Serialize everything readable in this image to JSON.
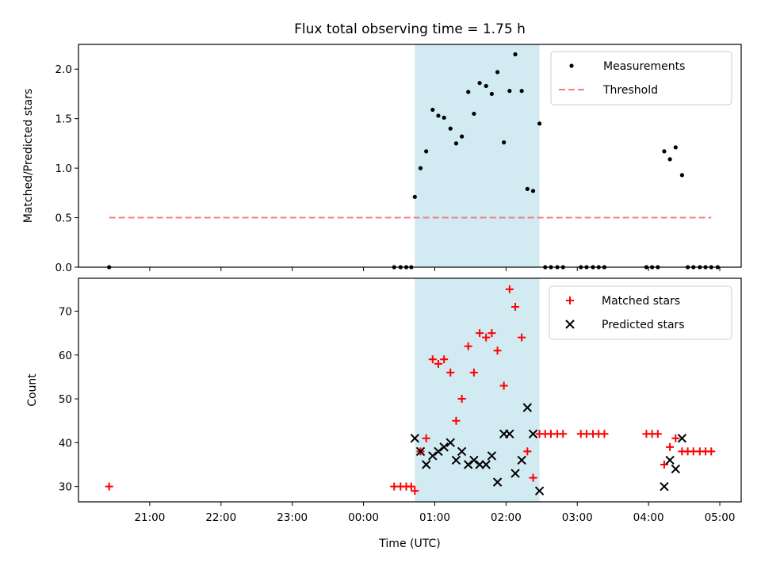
{
  "chart_data": {
    "title": "Flux total observing time = 1.75 h",
    "xlabel": "Time (UTC)",
    "x_unit": "hours UTC (values past 24 = after midnight)",
    "xlim": [
      20.0,
      29.3
    ],
    "x_ticks": [
      {
        "value": 21,
        "label": "21:00"
      },
      {
        "value": 22,
        "label": "22:00"
      },
      {
        "value": 23,
        "label": "23:00"
      },
      {
        "value": 24,
        "label": "00:00"
      },
      {
        "value": 25,
        "label": "01:00"
      },
      {
        "value": 26,
        "label": "02:00"
      },
      {
        "value": 27,
        "label": "03:00"
      },
      {
        "value": 28,
        "label": "04:00"
      },
      {
        "value": 29,
        "label": "05:00"
      }
    ],
    "highlight_band": {
      "x": [
        24.72,
        26.47
      ],
      "color": "#add8e6"
    },
    "panels": [
      {
        "type": "scatter",
        "ylabel": "Matched/Predicted stars",
        "ylim": [
          0,
          2.25
        ],
        "y_ticks": [
          "0.0",
          "0.5",
          "1.0",
          "1.5",
          "2.0"
        ],
        "legend_position": "top-right",
        "series": [
          {
            "name": "Measurements",
            "marker": "dot",
            "color": "#000000",
            "points": [
              [
                20.43,
                0
              ],
              [
                24.43,
                0
              ],
              [
                24.52,
                0
              ],
              [
                24.6,
                0
              ],
              [
                24.67,
                0
              ],
              [
                24.72,
                0.71
              ],
              [
                24.8,
                1.0
              ],
              [
                24.88,
                1.17
              ],
              [
                24.97,
                1.59
              ],
              [
                25.05,
                1.53
              ],
              [
                25.13,
                1.51
              ],
              [
                25.22,
                1.4
              ],
              [
                25.3,
                1.25
              ],
              [
                25.38,
                1.32
              ],
              [
                25.47,
                1.77
              ],
              [
                25.55,
                1.55
              ],
              [
                25.63,
                1.86
              ],
              [
                25.72,
                1.83
              ],
              [
                25.8,
                1.75
              ],
              [
                25.88,
                1.97
              ],
              [
                25.97,
                1.26
              ],
              [
                26.05,
                1.78
              ],
              [
                26.13,
                2.15
              ],
              [
                26.22,
                1.78
              ],
              [
                26.3,
                0.79
              ],
              [
                26.38,
                0.77
              ],
              [
                26.47,
                1.45
              ],
              [
                26.55,
                0
              ],
              [
                26.63,
                0
              ],
              [
                26.72,
                0
              ],
              [
                26.8,
                0
              ],
              [
                27.05,
                0
              ],
              [
                27.13,
                0
              ],
              [
                27.22,
                0
              ],
              [
                27.3,
                0
              ],
              [
                27.38,
                0
              ],
              [
                27.97,
                0
              ],
              [
                28.05,
                0
              ],
              [
                28.13,
                0
              ],
              [
                28.22,
                1.17
              ],
              [
                28.3,
                1.09
              ],
              [
                28.38,
                1.21
              ],
              [
                28.47,
                0.93
              ],
              [
                28.55,
                0
              ],
              [
                28.63,
                0
              ],
              [
                28.72,
                0
              ],
              [
                28.8,
                0
              ],
              [
                28.88,
                0
              ],
              [
                28.97,
                0
              ]
            ]
          },
          {
            "name": "Threshold",
            "marker": "dashed-line",
            "color": "#f08080",
            "points": [
              [
                20.43,
                0.5
              ],
              [
                28.88,
                0.5
              ]
            ]
          }
        ]
      },
      {
        "type": "scatter",
        "ylabel": "Count",
        "ylim": [
          26.5,
          77.5
        ],
        "y_ticks": [
          "30",
          "40",
          "50",
          "60",
          "70"
        ],
        "legend_position": "top-right",
        "series": [
          {
            "name": "Matched stars",
            "marker": "plus",
            "color": "#ff0000",
            "points": [
              [
                20.43,
                30
              ],
              [
                24.43,
                30
              ],
              [
                24.52,
                30
              ],
              [
                24.6,
                30
              ],
              [
                24.67,
                30
              ],
              [
                24.72,
                29
              ],
              [
                24.8,
                38
              ],
              [
                24.88,
                41
              ],
              [
                24.97,
                59
              ],
              [
                25.05,
                58
              ],
              [
                25.13,
                59
              ],
              [
                25.22,
                56
              ],
              [
                25.3,
                45
              ],
              [
                25.38,
                50
              ],
              [
                25.47,
                62
              ],
              [
                25.55,
                56
              ],
              [
                25.63,
                65
              ],
              [
                25.72,
                64
              ],
              [
                25.8,
                65
              ],
              [
                25.88,
                61
              ],
              [
                25.97,
                53
              ],
              [
                26.05,
                75
              ],
              [
                26.13,
                71
              ],
              [
                26.22,
                64
              ],
              [
                26.3,
                38
              ],
              [
                26.38,
                32
              ],
              [
                26.47,
                42
              ],
              [
                26.55,
                42
              ],
              [
                26.63,
                42
              ],
              [
                26.72,
                42
              ],
              [
                26.8,
                42
              ],
              [
                27.05,
                42
              ],
              [
                27.13,
                42
              ],
              [
                27.22,
                42
              ],
              [
                27.3,
                42
              ],
              [
                27.38,
                42
              ],
              [
                27.97,
                42
              ],
              [
                28.05,
                42
              ],
              [
                28.13,
                42
              ],
              [
                28.22,
                35
              ],
              [
                28.3,
                39
              ],
              [
                28.38,
                41
              ],
              [
                28.47,
                38
              ],
              [
                28.55,
                38
              ],
              [
                28.63,
                38
              ],
              [
                28.72,
                38
              ],
              [
                28.8,
                38
              ],
              [
                28.88,
                38
              ]
            ]
          },
          {
            "name": "Predicted stars",
            "marker": "x",
            "color": "#000000",
            "points": [
              [
                24.72,
                41
              ],
              [
                24.8,
                38
              ],
              [
                24.88,
                35
              ],
              [
                24.97,
                37
              ],
              [
                25.05,
                38
              ],
              [
                25.13,
                39
              ],
              [
                25.22,
                40
              ],
              [
                25.3,
                36
              ],
              [
                25.38,
                38
              ],
              [
                25.47,
                35
              ],
              [
                25.55,
                36
              ],
              [
                25.63,
                35
              ],
              [
                25.72,
                35
              ],
              [
                25.8,
                37
              ],
              [
                25.88,
                31
              ],
              [
                25.97,
                42
              ],
              [
                26.05,
                42
              ],
              [
                26.13,
                33
              ],
              [
                26.22,
                36
              ],
              [
                26.3,
                48
              ],
              [
                26.38,
                42
              ],
              [
                26.47,
                29
              ],
              [
                28.22,
                30
              ],
              [
                28.3,
                36
              ],
              [
                28.38,
                34
              ],
              [
                28.47,
                41
              ]
            ]
          }
        ]
      }
    ]
  }
}
